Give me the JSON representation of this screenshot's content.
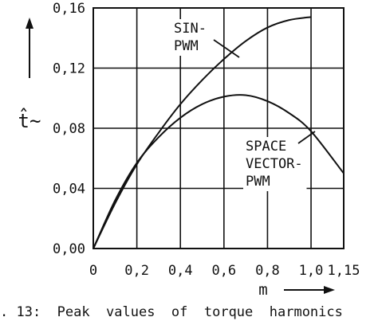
{
  "chart_data": {
    "type": "line",
    "xlabel": "m",
    "ylabel": "t̂~",
    "xlim": [
      0,
      1.15
    ],
    "ylim": [
      0,
      0.16
    ],
    "x_ticks": [
      "0",
      "0,2",
      "0,4",
      "0,6",
      "0,8",
      "1,0",
      "1,15"
    ],
    "y_ticks": [
      "0,00",
      "0,04",
      "0,08",
      "0,12",
      "0,16"
    ],
    "grid": true,
    "series": [
      {
        "name": "SIN-PWM",
        "label_lines": [
          "SIN-",
          "PWM"
        ],
        "x": [
          0,
          0.1,
          0.2,
          0.3,
          0.4,
          0.5,
          0.6,
          0.7,
          0.8,
          0.9,
          1.0
        ],
        "y": [
          0,
          0.03,
          0.056,
          0.077,
          0.096,
          0.112,
          0.126,
          0.138,
          0.147,
          0.152,
          0.154
        ]
      },
      {
        "name": "SPACE VECTOR-PWM",
        "label_lines": [
          "SPACE",
          "VECTOR-",
          "PWM"
        ],
        "x": [
          0,
          0.1,
          0.2,
          0.3,
          0.4,
          0.5,
          0.6,
          0.7,
          0.8,
          0.9,
          1.0,
          1.15
        ],
        "y": [
          0,
          0.032,
          0.057,
          0.074,
          0.087,
          0.096,
          0.101,
          0.102,
          0.098,
          0.09,
          0.078,
          0.05
        ]
      }
    ]
  },
  "caption": ". 13:  Peak  values  of  torque  harmonics"
}
